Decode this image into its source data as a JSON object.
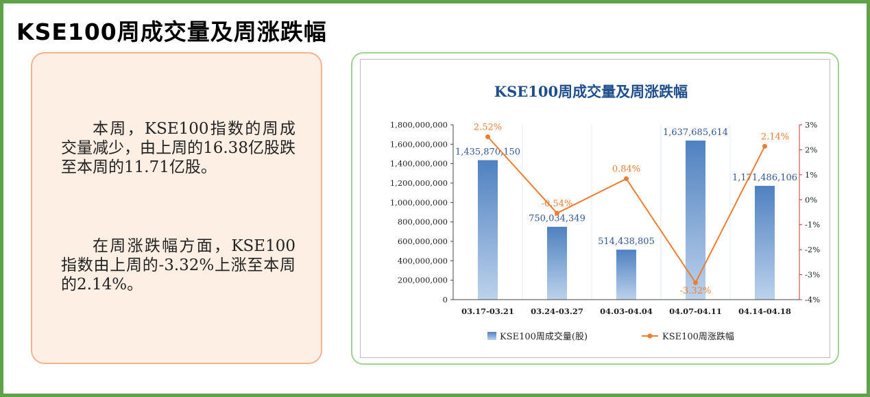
{
  "page": {
    "title": "KSE100周成交量及周涨跌幅"
  },
  "summary": {
    "paragraph1": "本周，KSE100指数的周成交量减少，由上周的16.38亿股跌至本周的11.71亿股。",
    "paragraph2": "在周涨跌幅方面，KSE100指数由上周的-3.32%上涨至本周的2.14%。"
  },
  "colors": {
    "frame": "#5fa24a",
    "text_card_border": "#f4b38e",
    "text_card_bg": "#fdefe4",
    "chart_card_border": "#9fd28e",
    "bar": "#4f81c0",
    "line": "#ee7d31",
    "title": "#1f4e8c",
    "right_axis": "#c0392b"
  },
  "chart_data": {
    "type": "bar+line",
    "title": "KSE100周成交量及周涨跌幅",
    "categories": [
      "03.17-03.21",
      "03.24-03.27",
      "04.03-04.04",
      "04.07-04.11",
      "04.14-04.18"
    ],
    "series": [
      {
        "name": "KSE100周成交量(股)",
        "type": "bar",
        "axis": "left",
        "values": [
          1435870150,
          750034349,
          514438805,
          1637685614,
          1171486106
        ],
        "labels": [
          "1,435,870,150",
          "750,034,349",
          "514,438,805",
          "1,637,685,614",
          "1,171,486,106"
        ]
      },
      {
        "name": "KSE100周涨跌幅",
        "type": "line",
        "axis": "right",
        "values": [
          2.52,
          -0.54,
          0.84,
          -3.32,
          2.14
        ],
        "labels": [
          "2.52%",
          "-0.54%",
          "0.84%",
          "-3.32%",
          "2.14%"
        ]
      }
    ],
    "y_left": {
      "min": 0,
      "max": 1800000000,
      "step": 200000000,
      "ticks": [
        "0",
        "200,000,000",
        "400,000,000",
        "600,000,000",
        "800,000,000",
        "1,000,000,000",
        "1,200,000,000",
        "1,400,000,000",
        "1,600,000,000",
        "1,800,000,000"
      ]
    },
    "y_right": {
      "min": -4,
      "max": 3,
      "step": 1,
      "ticks": [
        "-4%",
        "-3%",
        "-2%",
        "-1%",
        "0%",
        "1%",
        "2%",
        "3%"
      ]
    },
    "legend": [
      "KSE100周成交量(股)",
      "KSE100周涨跌幅"
    ],
    "legend_position": "bottom"
  }
}
